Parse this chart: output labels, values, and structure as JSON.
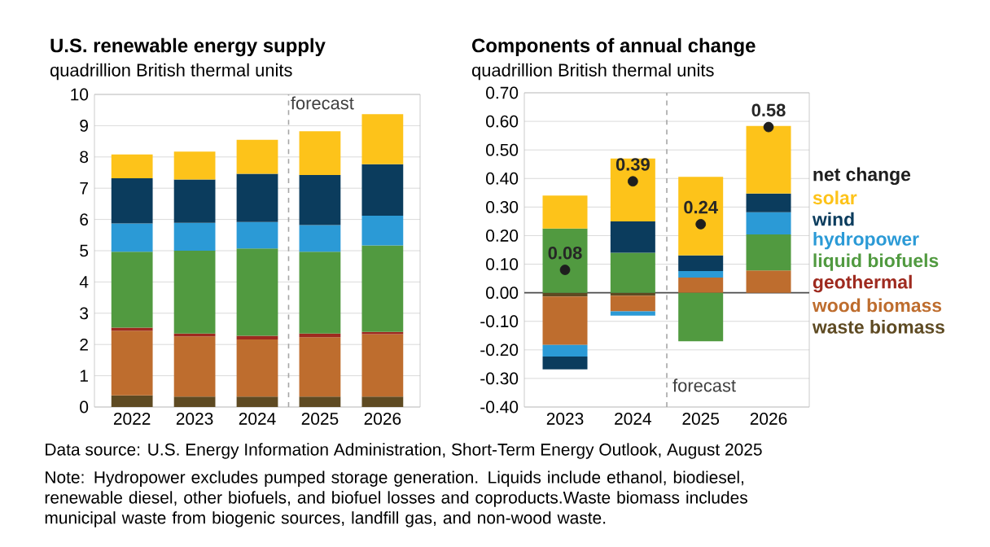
{
  "chart_data": [
    {
      "type": "bar",
      "title": "U.S. renewable energy supply",
      "subtitle": "quadrillion British thermal units",
      "stacked": true,
      "grid": "y",
      "legend": false,
      "x": [
        2022,
        2023,
        2024,
        2025,
        2026
      ],
      "xlim": [
        2021.4,
        2026.6
      ],
      "xticks": [
        2022,
        2023,
        2024,
        2025,
        2026
      ],
      "ylim": [
        0,
        10
      ],
      "yticks": [
        0,
        1,
        2,
        3,
        4,
        5,
        6,
        7,
        8,
        9,
        10
      ],
      "series": [
        {
          "color": "#5e4a22",
          "values": [
            0.37,
            0.33,
            0.33,
            0.33,
            0.33
          ]
        },
        {
          "color": "#be6d2e",
          "values": [
            2.07,
            1.93,
            1.83,
            1.9,
            2.0
          ]
        },
        {
          "color": "#9e2a1f",
          "values": [
            0.1,
            0.09,
            0.12,
            0.12,
            0.07
          ]
        },
        {
          "color": "#519a40",
          "values": [
            2.43,
            2.65,
            2.79,
            2.62,
            2.77
          ]
        },
        {
          "color": "#2b9ad6",
          "values": [
            0.9,
            0.89,
            0.85,
            0.85,
            0.95
          ]
        },
        {
          "color": "#0b3c5d",
          "values": [
            1.45,
            1.39,
            1.54,
            1.6,
            1.65
          ]
        },
        {
          "color": "#fdc31a",
          "values": [
            0.76,
            0.89,
            1.09,
            1.4,
            1.6
          ]
        }
      ],
      "ref_lines": [
        {
          "axis": "x",
          "value": 2024.5,
          "label": "forecast",
          "color": "#a6a6a6",
          "line_style": "dashed"
        }
      ],
      "annotations": [
        "Data source: U.S. Energy Information Administration, Short-Term Energy Outlook, August 2025",
        "Note: Hydropower excludes pumped storage generation. Liquids include ethanol, biodiesel, renewable diesel, other biofuels, and biofuel losses and coproducts.Waste biomass includes municipal waste from biogenic sources, landfill gas, and non-wood waste."
      ]
    },
    {
      "type": "bar",
      "title": "Components of annual change",
      "subtitle": "quadrillion British thermal units",
      "stacked": true,
      "grid": "y",
      "legend": "right",
      "x": [
        2023,
        2024,
        2025,
        2026
      ],
      "xlim": [
        2022.4,
        2026.6
      ],
      "xticks": [
        2023,
        2024,
        2025,
        2026
      ],
      "ylim": [
        -0.4,
        0.7
      ],
      "yticks": [
        {
          "value": -0.4,
          "label": "-0.40"
        },
        {
          "value": -0.3,
          "label": "-0.30"
        },
        {
          "value": -0.2,
          "label": "-0.20"
        },
        {
          "value": -0.1,
          "label": "-0.10"
        },
        {
          "value": 0,
          "label": "0.00"
        },
        {
          "value": 0.1,
          "label": "0.10"
        },
        {
          "value": 0.2,
          "label": "0.20"
        },
        {
          "value": 0.3,
          "label": "0.30"
        },
        {
          "value": 0.4,
          "label": "0.40"
        },
        {
          "value": 0.5,
          "label": "0.50"
        },
        {
          "value": 0.6,
          "label": "0.60"
        },
        {
          "value": 0.7,
          "label": "0.70"
        }
      ],
      "series": [
        {
          "name": "waste biomass",
          "color": "#5e4a22",
          "values": [
            -0.013,
            -0.01,
            0,
            0
          ]
        },
        {
          "name": "wood biomass",
          "color": "#be6d2e",
          "values": [
            -0.17,
            -0.055,
            0.053,
            0.078
          ]
        },
        {
          "name": "geothermal",
          "color": "#9e2a1f",
          "values": [
            0,
            0,
            0,
            0
          ]
        },
        {
          "name": "liquid biofuels",
          "color": "#519a40",
          "values": [
            0.225,
            0.14,
            -0.17,
            0.126
          ]
        },
        {
          "name": "hydropower",
          "color": "#2b9ad6",
          "values": [
            -0.04,
            -0.015,
            0.023,
            0.078
          ]
        },
        {
          "name": "wind",
          "color": "#0b3c5d",
          "values": [
            -0.045,
            0.11,
            0.055,
            0.065
          ]
        },
        {
          "name": "solar",
          "color": "#fdc31a",
          "values": [
            0.115,
            0.22,
            0.275,
            0.237
          ]
        },
        {
          "name": "net change",
          "type": "scatter",
          "color": "#1e1e1e",
          "values": [
            0.08,
            0.39,
            0.24,
            0.58
          ],
          "value_labels": [
            "0.08",
            "0.39",
            "0.24",
            "0.58"
          ]
        }
      ],
      "ref_lines": [
        {
          "axis": "x",
          "value": 2024.5,
          "label": "forecast",
          "color": "#a6a6a6",
          "line_style": "dashed"
        }
      ]
    }
  ]
}
